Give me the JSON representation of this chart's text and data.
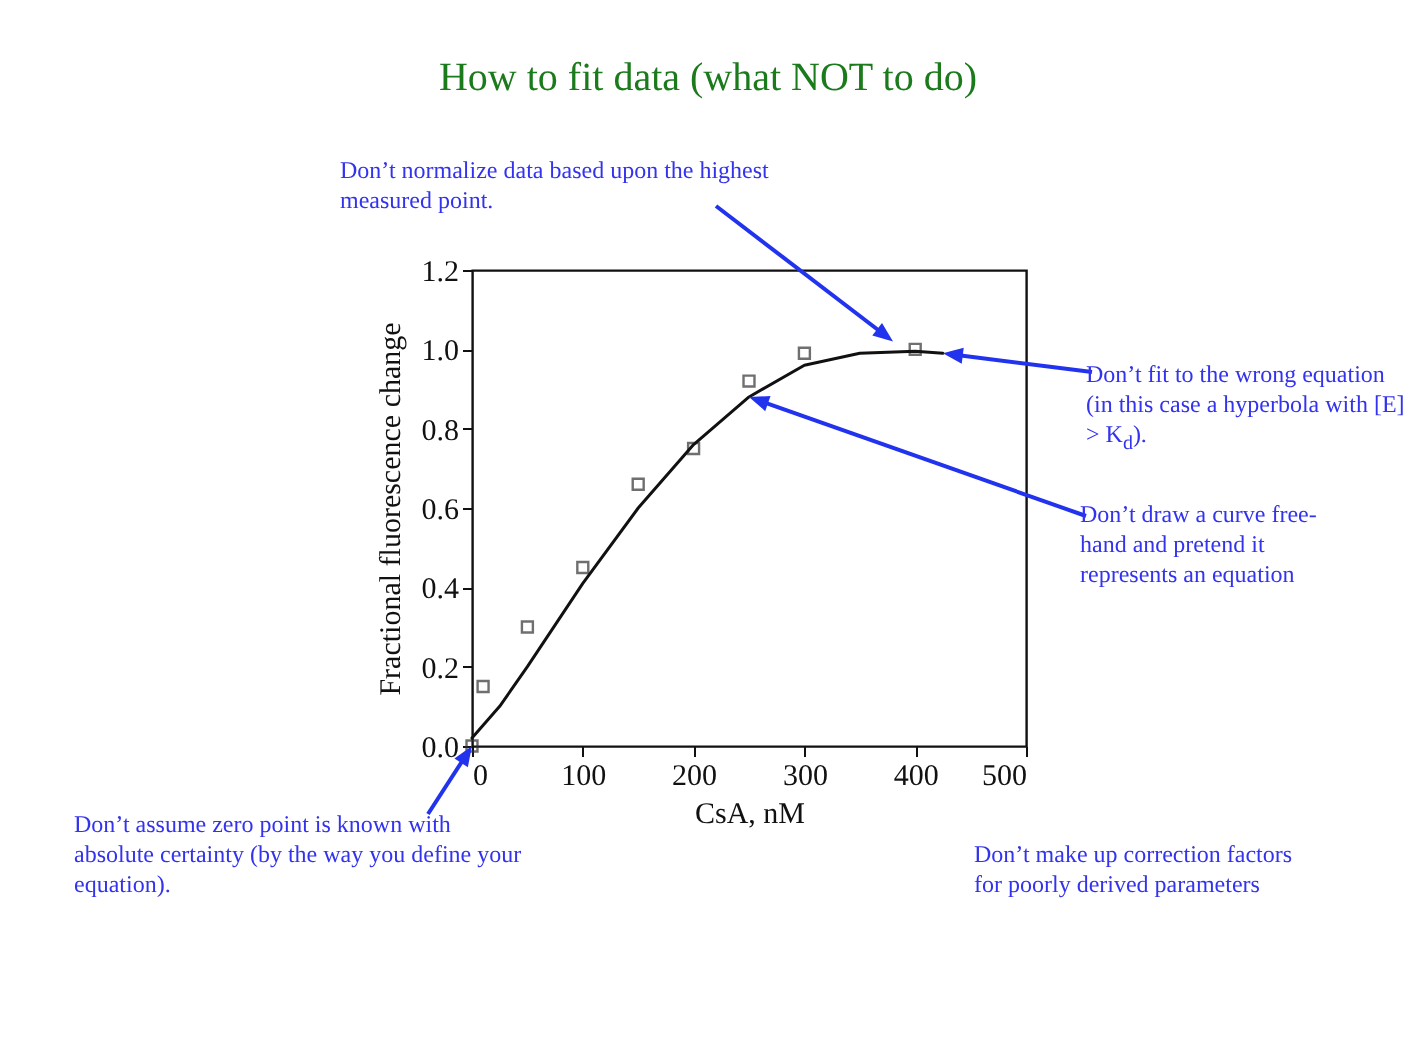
{
  "chart_data": {
    "type": "scatter",
    "title": "How to fit data (what NOT to do)",
    "xlabel": "CsA, nM",
    "ylabel": "Fractional fluorescence change",
    "xlim": [
      0,
      500
    ],
    "xticks": [
      0,
      100,
      200,
      300,
      400,
      500
    ],
    "ylim": [
      0,
      1.2
    ],
    "yticks": [
      {
        "value": 0,
        "label": "0.0"
      },
      0.2,
      0.4,
      0.6,
      0.8,
      {
        "value": 1,
        "label": "1.0"
      },
      1.2
    ],
    "grid": false,
    "series": [
      {
        "type": "scatter",
        "marker": "square",
        "color": "#333333",
        "x": [
          0,
          10,
          50,
          100,
          150,
          200,
          250,
          300,
          400
        ],
        "values": [
          0,
          0.15,
          0.3,
          0.45,
          0.66,
          0.75,
          0.92,
          0.99,
          1.0
        ]
      },
      {
        "type": "line",
        "marker": "none",
        "line_style": "solid",
        "color": "#111111",
        "x": [
          0,
          25,
          50,
          100,
          150,
          200,
          250,
          300,
          350,
          400,
          425
        ],
        "values": [
          0.02,
          0.1,
          0.2,
          0.41,
          0.6,
          0.76,
          0.88,
          0.96,
          0.99,
          0.995,
          0.99
        ]
      }
    ],
    "annotations": [
      {
        "text": "Don’t normalize data based upon the highest measured point.",
        "x": 380,
        "y": 1.02
      },
      {
        "text": "Don’t fit to the wrong equation (in this case a hyperbola with [E] > K$_{d}$).",
        "x": 425,
        "y": 0.99
      },
      {
        "text": "Don’t draw a curve free-hand and pretend it represents an equation",
        "x": 250,
        "y": 0.88
      },
      {
        "text": "Don’t assume zero point is known with absolute certainty (by the way you define your equation).",
        "x": 0,
        "y": 0
      },
      "Don’t make up correction factors for poorly derived parameters"
    ]
  }
}
